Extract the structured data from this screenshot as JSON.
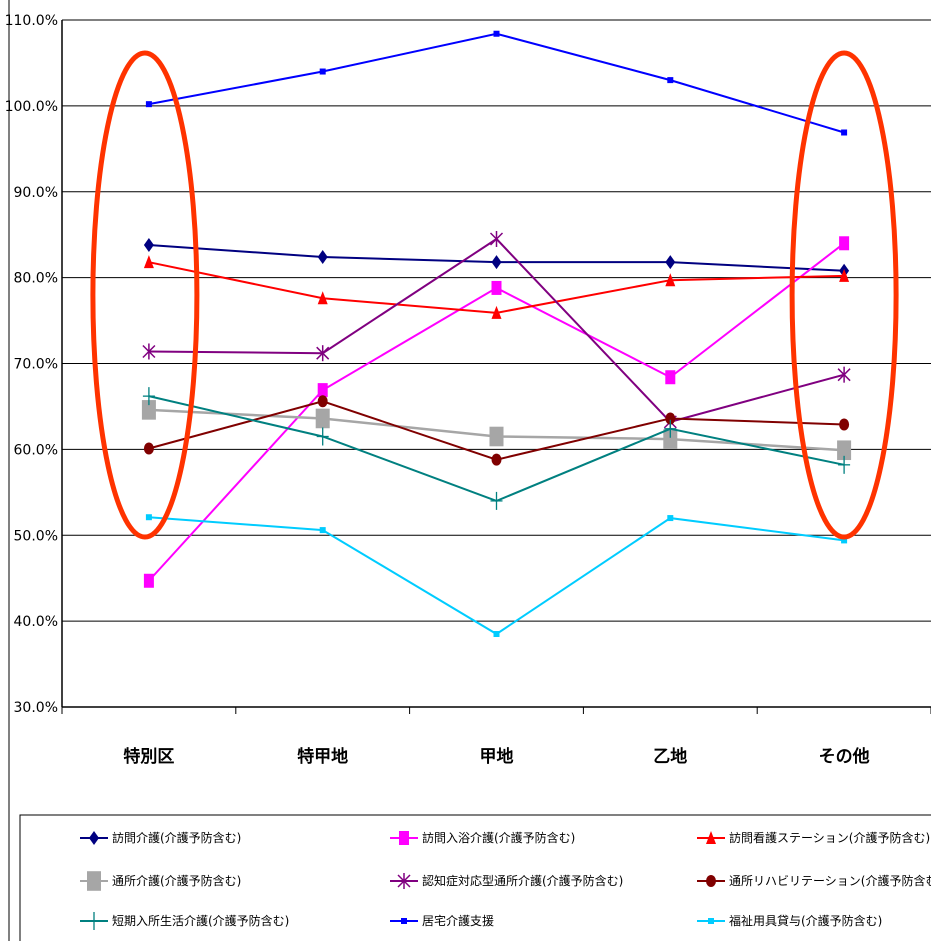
{
  "chart_data": {
    "type": "line",
    "categories": [
      "特別区",
      "特甲地",
      "甲地",
      "乙地",
      "その他"
    ],
    "ylim": [
      30,
      110
    ],
    "yticks": [
      "30.0%",
      "40.0%",
      "50.0%",
      "60.0%",
      "70.0%",
      "80.0%",
      "90.0%",
      "100.0%",
      "110.0%"
    ],
    "grid": "horizontal",
    "legend_position": "bottom",
    "series": [
      {
        "name": "訪問介護(介護予防含む)",
        "values": [
          83.8,
          82.4,
          81.8,
          81.8,
          80.8
        ],
        "color": "#000080",
        "marker": "diamond"
      },
      {
        "name": "訪問入浴介護(介護予防含む)",
        "values": [
          44.7,
          66.9,
          78.8,
          68.4,
          84.0
        ],
        "color": "#ff00ff",
        "marker": "square"
      },
      {
        "name": "訪問看護ステーション(介護予防含む)",
        "values": [
          81.8,
          77.6,
          75.9,
          79.7,
          80.2
        ],
        "color": "#ff0000",
        "marker": "triangle"
      },
      {
        "name": "通所介護(介護予防含む)",
        "values": [
          64.6,
          63.6,
          61.5,
          61.2,
          59.9
        ],
        "color": "#a6a6a6",
        "marker": "square"
      },
      {
        "name": "認知症対応型通所介護(介護予防含む)",
        "values": [
          71.4,
          71.2,
          84.5,
          63.2,
          68.7
        ],
        "color": "#800080",
        "marker": "star"
      },
      {
        "name": "通所リハビリテーション(介護予防含む)",
        "values": [
          60.1,
          65.6,
          58.8,
          63.6,
          62.9
        ],
        "color": "#800000",
        "marker": "circle"
      },
      {
        "name": "短期入所生活介護(介護予防含む)",
        "values": [
          66.2,
          61.5,
          54.0,
          62.4,
          58.2
        ],
        "color": "#008080",
        "marker": "plus"
      },
      {
        "name": "居宅介護支援",
        "values": [
          100.2,
          104.0,
          108.4,
          103.0,
          96.9
        ],
        "color": "#0000ff",
        "marker": "smallsquare"
      },
      {
        "name": "福祉用具貸与(介護予防含む)",
        "values": [
          52.1,
          50.6,
          38.5,
          52.0,
          49.4
        ],
        "color": "#00ccff",
        "marker": "smallsquare"
      }
    ],
    "annotations": [
      {
        "shape": "ellipse",
        "category": "特別区",
        "color": "#ff3300"
      },
      {
        "shape": "ellipse",
        "category": "その他",
        "color": "#ff3300"
      }
    ]
  }
}
